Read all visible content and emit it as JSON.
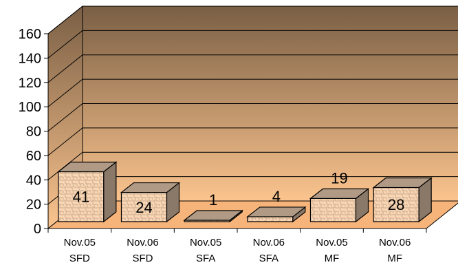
{
  "chart_data": {
    "type": "bar",
    "title": "",
    "xlabel": "",
    "ylabel": "",
    "categories": [
      [
        "Nov.05",
        "SFD"
      ],
      [
        "Nov.06",
        "SFD"
      ],
      [
        "Nov.05",
        "SFA"
      ],
      [
        "Nov.06",
        "SFA"
      ],
      [
        "Nov.05",
        "MF"
      ],
      [
        "Nov.06",
        "MF"
      ]
    ],
    "values": [
      41,
      24,
      1,
      4,
      19,
      28
    ],
    "data_labels": [
      "41",
      "24",
      "1",
      "4",
      "19",
      "28"
    ],
    "ylim": [
      0,
      160
    ],
    "yticks": [
      0,
      20,
      40,
      60,
      80,
      100,
      120,
      140,
      160
    ],
    "ytick_labels": [
      "0",
      "20",
      "40",
      "60",
      "80",
      "100",
      "120",
      "140",
      "160"
    ],
    "grid": true,
    "style": "3d-column",
    "colors": {
      "bar_face": "#f9d7b6",
      "bar_pattern": "#c9a88a",
      "bar_top": "#b09a86",
      "bar_side": "#8a7868",
      "bar_outline": "#000000",
      "back_wall_top": "#7a5f45",
      "back_wall_bottom": "#fbc48e",
      "floor": "#f7b47a",
      "gridline": "#000000"
    }
  }
}
